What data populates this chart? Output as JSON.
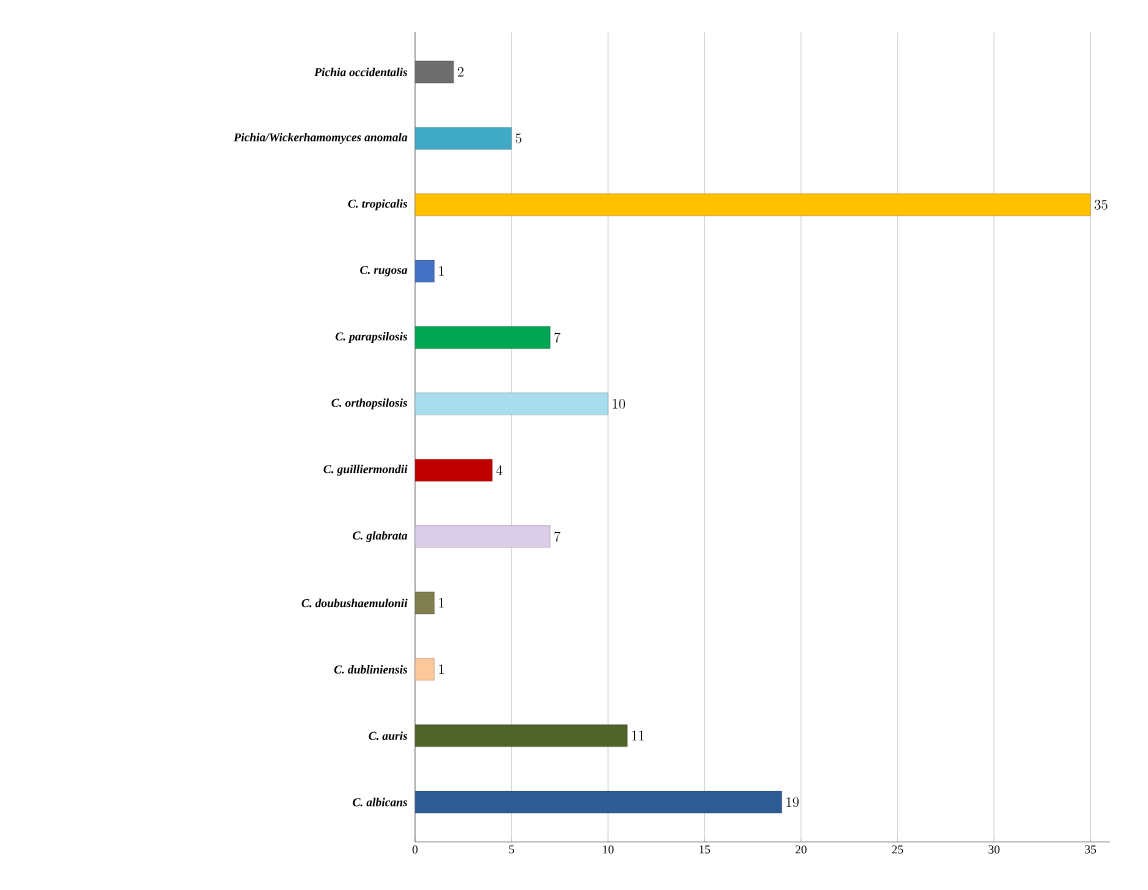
{
  "chart_data": {
    "type": "bar",
    "orientation": "horizontal",
    "categories": [
      "*Pichia occidentalis*",
      "*Pichia/Wickerhamomyces anomala*",
      "*C. tropicalis*",
      "*C. rugosa*",
      "*C. parapsilosis*",
      "*C. orthopsilosis*",
      "*C. guilliermondii*",
      "*C. glabrata*",
      "*C. doubushaemulonii*",
      "*C. dubliniensis*",
      "*C. auris*",
      "*C. albicans*"
    ],
    "values": [
      2,
      5,
      35,
      1,
      7,
      10,
      4,
      7,
      1,
      1,
      11,
      19
    ],
    "colors": [
      "#6e6e6e",
      "#3fa9c6",
      "#ffc000",
      "#4472c4",
      "#00a651",
      "#a8ddf0",
      "#c00000",
      "#d9cde8",
      "#7f7f4f",
      "#fcc79a",
      "#4f6228",
      "#2e5c94"
    ],
    "xlim": [
      0,
      36
    ],
    "xticks": [
      0,
      5,
      10,
      15,
      20,
      25,
      30,
      35
    ],
    "grid": "x",
    "data_labels": true
  }
}
